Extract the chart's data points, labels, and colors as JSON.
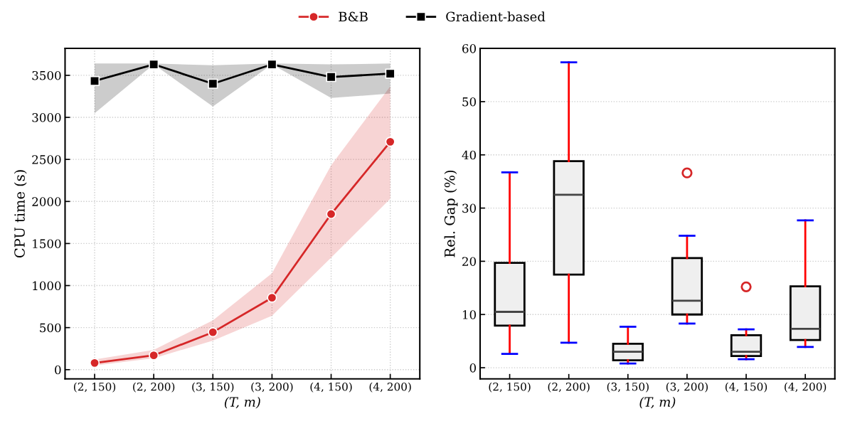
{
  "chart_data": [
    {
      "type": "line",
      "xlabel": "(T, m)",
      "ylabel": "CPU time (s)",
      "categories": [
        "(2, 150)",
        "(2, 200)",
        "(3, 150)",
        "(3, 200)",
        "(4, 150)",
        "(4, 200)"
      ],
      "series": [
        {
          "name": "B&B",
          "color": "#d62728",
          "marker": "circle",
          "values": [
            80,
            170,
            445,
            855,
            1850,
            2710
          ],
          "lower": [
            50,
            135,
            346,
            641,
            1333,
            2033
          ],
          "upper": [
            121,
            236,
            585,
            1147,
            2430,
            3368
          ]
        },
        {
          "name": "Gradient-based",
          "color": "#000000",
          "marker": "square",
          "values": [
            3433,
            3630,
            3400,
            3630,
            3480,
            3520
          ],
          "lower": [
            3050,
            3630,
            3130,
            3630,
            3230,
            3283
          ],
          "upper": [
            3640,
            3640,
            3620,
            3640,
            3630,
            3640
          ]
        }
      ],
      "ylim": [
        -110,
        3820
      ],
      "yticks": [
        0,
        500,
        1000,
        1500,
        2000,
        2500,
        3000,
        3500
      ],
      "grid": true,
      "legend": "top",
      "line_style": "solid"
    },
    {
      "type": "box",
      "xlabel": "(T, m)",
      "ylabel": "Rel. Gap (%)",
      "categories": [
        "(2, 150)",
        "(2, 200)",
        "(3, 150)",
        "(3, 200)",
        "(4, 150)",
        "(4, 200)"
      ],
      "color": "#efefef",
      "boxes": [
        {
          "low": 2.6,
          "q1": 7.9,
          "median": 10.5,
          "q3": 19.7,
          "high": 36.7
        },
        {
          "low": 4.7,
          "q1": 17.5,
          "median": 32.5,
          "q3": 38.8,
          "high": 57.4
        },
        {
          "low": 0.8,
          "q1": 1.4,
          "median": 3.0,
          "q3": 4.5,
          "high": 7.7
        },
        {
          "low": 8.3,
          "q1": 10.0,
          "median": 12.6,
          "q3": 20.6,
          "high": 24.8,
          "outliers": [
            36.6
          ]
        },
        {
          "low": 1.6,
          "q1": 2.2,
          "median": 3.0,
          "q3": 6.1,
          "high": 7.2,
          "outliers": [
            15.2
          ]
        },
        {
          "low": 3.9,
          "q1": 5.2,
          "median": 7.3,
          "q3": 15.3,
          "high": 27.7
        }
      ],
      "ylim": [
        -2.1,
        60
      ],
      "yticks": [
        0,
        10,
        20,
        30,
        40,
        50,
        60
      ],
      "grid": "y"
    }
  ]
}
